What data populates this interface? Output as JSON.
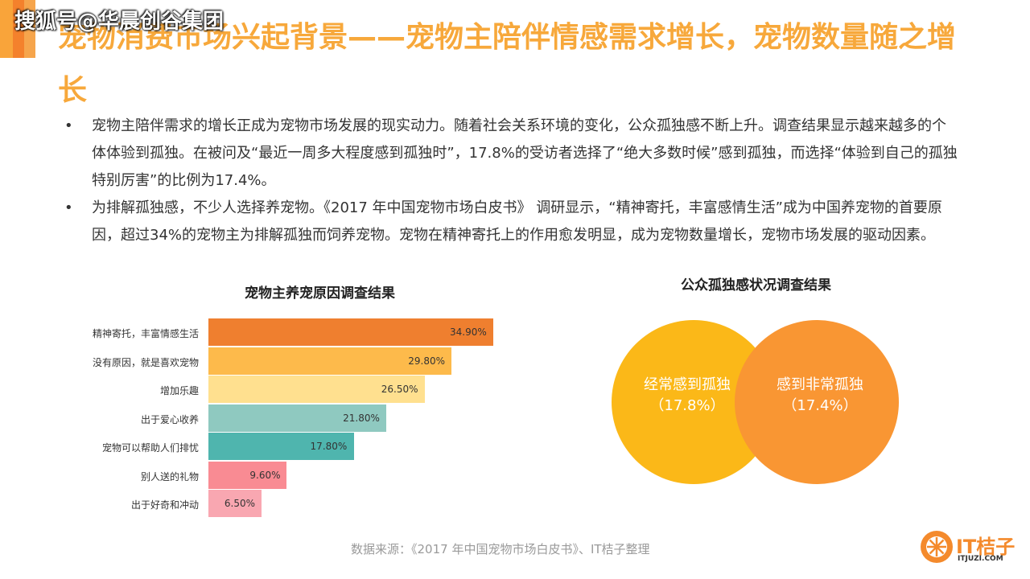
{
  "watermark": "搜狐号@华晨创谷集团",
  "title": "宠物消费市场兴起背景——宠物主陪伴情感需求增长，宠物数量随之增长",
  "bullets": [
    {
      "marker": "•",
      "text": "宠物主陪伴需求的增长正成为宠物市场发展的现实动力。随着社会关系环境的变化，公众孤独感不断上升。调查结果显示越来越多的个体体验到孤独。在被问及“最近一周多大程度感到孤独时”，17.8%的受访者选择了“绝大多数时候”感到孤独，而选择“体验到自己的孤独特别厉害”的比例为17.4%。"
    },
    {
      "marker": "•",
      "text": "为排解孤独感，不少人选择养宠物。《2017 年中国宠物市场白皮书》 调研显示，“精神寄托，丰富感情生活”成为中国养宠物的首要原因，超过34%的宠物主为排解孤独而饲养宠物。宠物在精神寄托上的作用愈发明显，成为宠物数量增长，宠物市场发展的驱动因素。"
    }
  ],
  "chart_data": [
    {
      "type": "bar",
      "orientation": "horizontal",
      "title": "宠物主养宠原因调查结果",
      "categories": [
        "精神寄托，丰富情感生活",
        "没有原因，就是喜欢宠物",
        "增加乐趣",
        "出于爱心收养",
        "宠物可以帮助人们排忧",
        "别人送的礼物",
        "出于好奇和冲动"
      ],
      "values": [
        34.9,
        29.8,
        26.5,
        21.8,
        17.8,
        9.6,
        6.5
      ],
      "value_labels": [
        "34.90%",
        "29.80%",
        "26.50%",
        "21.80%",
        "17.80%",
        "9.60%",
        "6.50%"
      ],
      "colors": [
        "#EF7F2F",
        "#FDBA4B",
        "#FFE08F",
        "#8FC9C0",
        "#4FB5AE",
        "#F98B93",
        "#F9A7B1"
      ],
      "xlim": [
        0,
        40
      ],
      "grid": false,
      "xlabel": "",
      "ylabel": ""
    },
    {
      "type": "venn",
      "title": "公众孤独感状况调查结果",
      "sets": [
        {
          "name": "经常感到孤独",
          "label": "（17.8%）",
          "value": 17.8,
          "color": "#FBB818"
        },
        {
          "name": "感到非常孤独",
          "label": "（17.4%）",
          "value": 17.4,
          "color": "#F99633"
        }
      ]
    }
  ],
  "source": "数据来源：《2017 年中国宠物市场白皮书》、IT桔子整理",
  "logo": {
    "text": "IT桔子",
    "url": "ITJUZI.COM",
    "color": "#F48A2C"
  }
}
